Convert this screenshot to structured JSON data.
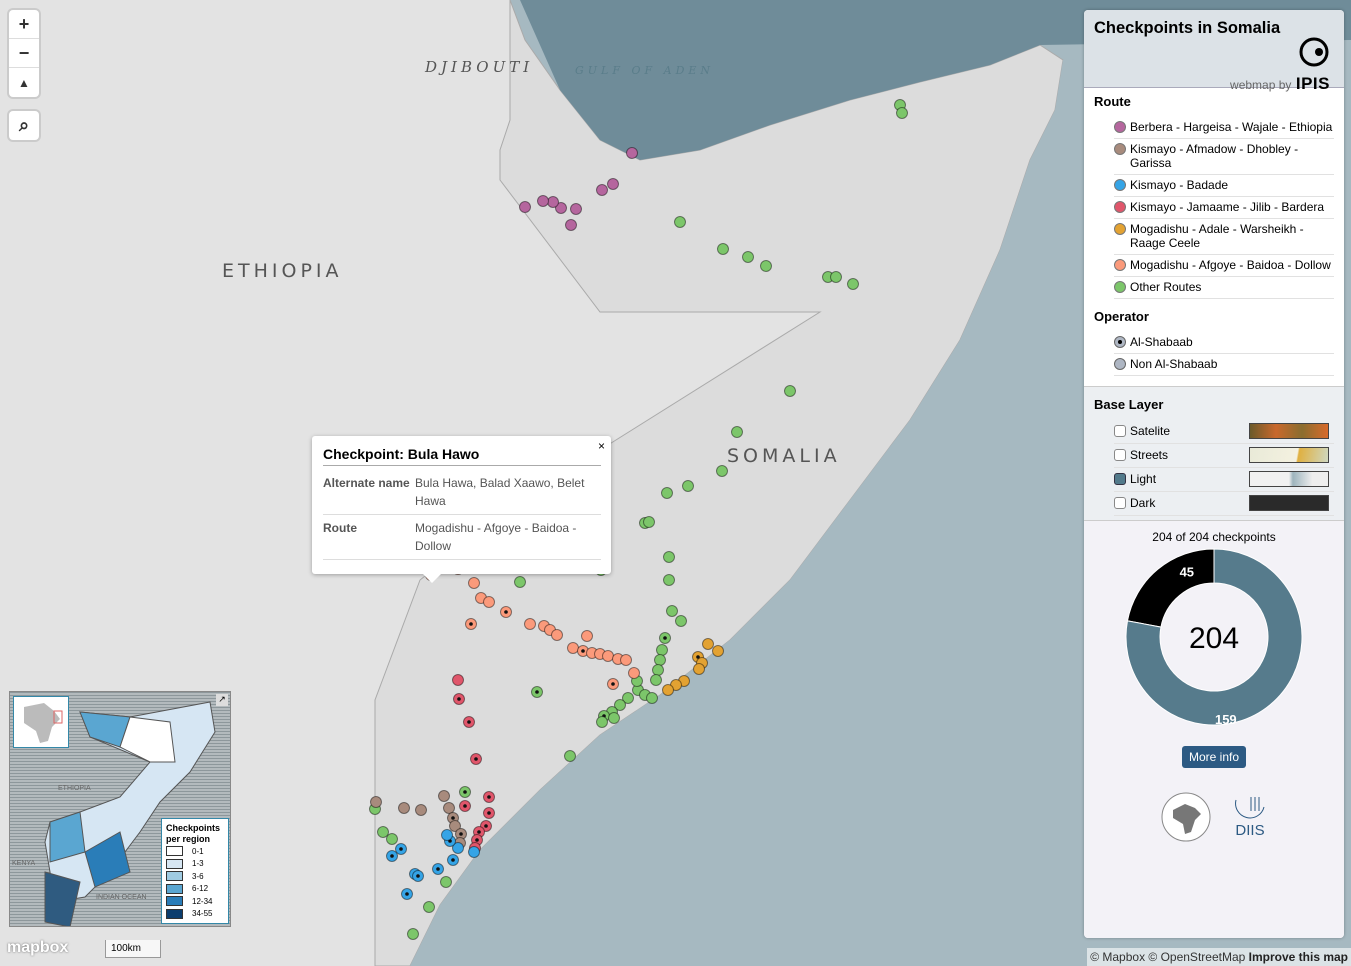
{
  "map": {
    "labels": {
      "djibouti": "DJIBOUTI",
      "gulf": "GULF OF ADEN",
      "ethiopia": "ETHIOPIA",
      "somalia": "SOMALIA"
    },
    "controls": {
      "zoom_in": "+",
      "zoom_out": "−",
      "compass": "▲",
      "search": "⌕"
    },
    "scale": "100km",
    "logo": "mapbox",
    "attribution": "© Mapbox © OpenStreetMap",
    "improve": "Improve this map"
  },
  "popup": {
    "title": "Checkpoint: Bula Hawo",
    "close": "×",
    "rows": [
      {
        "key": "Alternate name",
        "value": "Bula Hawa, Balad Xaawo, Belet Hawa"
      },
      {
        "key": "Route",
        "value": "Mogadishu - Afgoye - Baidoa - Dollow"
      }
    ]
  },
  "inset": {
    "labels": {
      "ethiopia": "ETHIOPIA",
      "kenya": "KENYA",
      "ocean": "INDIAN OCEAN"
    },
    "legend_title": "Checkpoints per region",
    "legend": [
      {
        "label": "0-1",
        "color": "#ffffff"
      },
      {
        "label": "1-3",
        "color": "#d6e6f3"
      },
      {
        "label": "3-6",
        "color": "#9fcbe2"
      },
      {
        "label": "6-12",
        "color": "#5aa6d1"
      },
      {
        "label": "12-34",
        "color": "#2a7db8"
      },
      {
        "label": "34-55",
        "color": "#0b3d6e"
      }
    ]
  },
  "panel": {
    "title": "Checkpoints in Somalia",
    "webmap_by": "webmap by",
    "brand": "IPIS",
    "route_heading": "Route",
    "routes": [
      {
        "label": "Berbera - Hargeisa - Wajale - Ethiopia",
        "color": "#b5669e"
      },
      {
        "label": "Kismayo - Afmadow - Dhobley - Garissa",
        "color": "#a88b7d"
      },
      {
        "label": "Kismayo - Badade",
        "color": "#35a4e6"
      },
      {
        "label": "Kismayo - Jamaame - Jilib - Bardera",
        "color": "#e0566b"
      },
      {
        "label": "Mogadishu - Adale - Warsheikh - Raage Ceele",
        "color": "#e3a232"
      },
      {
        "label": "Mogadishu - Afgoye - Baidoa - Dollow",
        "color": "#fb9a7b"
      },
      {
        "label": "Other Routes",
        "color": "#7cc66a"
      }
    ],
    "operator_heading": "Operator",
    "operators": [
      {
        "label": "Al-Shabaab",
        "selected": true
      },
      {
        "label": "Non Al-Shabaab",
        "selected": false
      }
    ],
    "base_heading": "Base Layer",
    "base_layers": [
      {
        "label": "Satelite",
        "checked": false
      },
      {
        "label": "Streets",
        "checked": false
      },
      {
        "label": "Light",
        "checked": true
      },
      {
        "label": "Dark",
        "checked": false
      }
    ],
    "count_text": "204 of 204 checkpoints",
    "more_info": "More info",
    "diis": "DIIS"
  },
  "chart_data": {
    "type": "pie",
    "total": "204",
    "slices": [
      {
        "label": "Al-Shabaab",
        "value": 45,
        "color": "#000000"
      },
      {
        "label": "Non Al-Shabaab",
        "value": 159,
        "color": "#567b8c"
      }
    ]
  }
}
